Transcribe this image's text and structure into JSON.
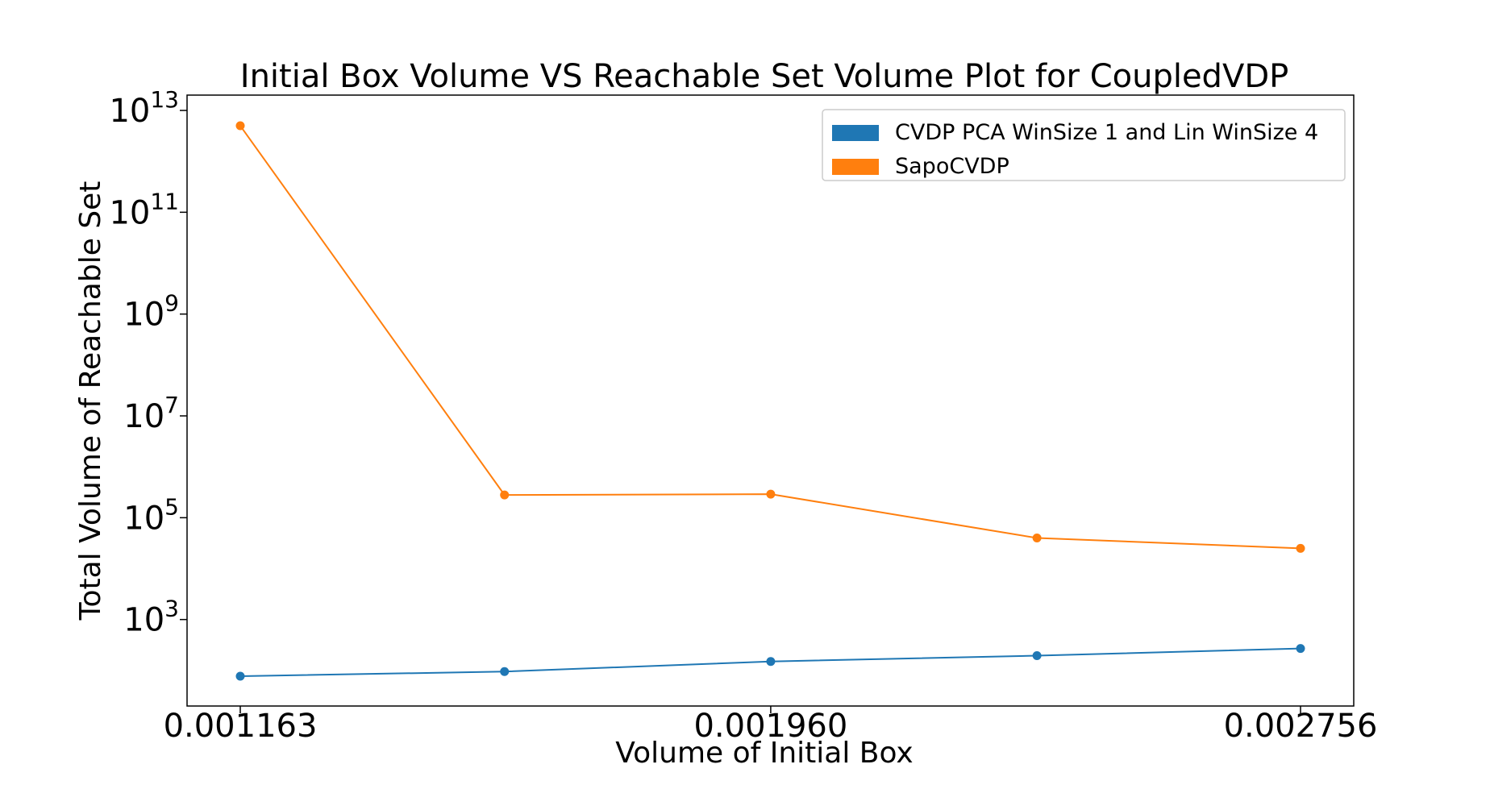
{
  "chart_data": {
    "type": "line",
    "title": "Initial Box Volume VS Reachable Set Volume Plot for CoupledVDP",
    "xlabel": "Volume of Initial Box",
    "ylabel": "Total Volume of Reachable Set",
    "x": [
      0.001163,
      0.00156,
      0.00196,
      0.00236,
      0.002756
    ],
    "xlim": [
      0.001163,
      0.002756
    ],
    "xticks": [
      0.001163,
      0.00196,
      0.002756
    ],
    "xtick_labels": [
      "0.001163",
      "0.001960",
      "0.002756"
    ],
    "yscale": "log",
    "ylim": [
      20,
      20000000000000
    ],
    "yticks": [
      {
        "value": 1000,
        "base": "10",
        "exp": "3"
      },
      {
        "value": 100000,
        "base": "10",
        "exp": "5"
      },
      {
        "value": 10000000,
        "base": "10",
        "exp": "7"
      },
      {
        "value": 1000000000,
        "base": "10",
        "exp": "9"
      },
      {
        "value": 100000000000,
        "base": "10",
        "exp": "11"
      },
      {
        "value": 10000000000000,
        "base": "10",
        "exp": "13"
      }
    ],
    "grid": false,
    "legend_position": "top-right",
    "series": [
      {
        "name": "CVDP PCA WinSize 1 and Lin WinSize 4",
        "color": "#1f77b4",
        "values": [
          77,
          95,
          150,
          195,
          270
        ]
      },
      {
        "name": "SapoCVDP",
        "color": "#ff7f0e",
        "values": [
          5000000000000,
          280000,
          290000,
          40000,
          25000
        ]
      }
    ]
  }
}
